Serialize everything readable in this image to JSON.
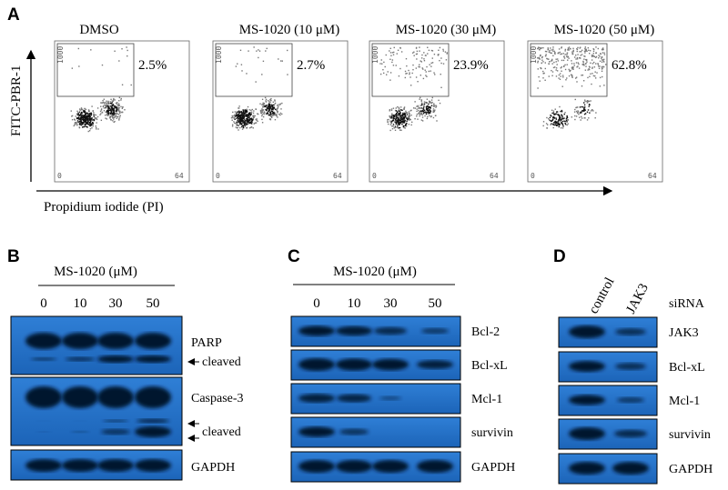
{
  "panel_a": {
    "label": "A",
    "y_label": "FITC-PBR-1",
    "x_label": "Propidium iodide (PI)",
    "plots": [
      {
        "title": "DMSO",
        "percent": "2.5%",
        "y_tick": "1000",
        "x_ticks": [
          "0",
          "64"
        ]
      },
      {
        "title": "MS-1020 (10 μM)",
        "percent": "2.7%",
        "y_tick": "1000",
        "x_ticks": [
          "0",
          "64"
        ]
      },
      {
        "title": "MS-1020 (30 μM)",
        "percent": "23.9%",
        "y_tick": "1000",
        "x_ticks": [
          "0",
          "64"
        ]
      },
      {
        "title": "MS-1020 (50 μM)",
        "percent": "62.8%",
        "y_tick": "1000",
        "x_ticks": [
          "0",
          "64"
        ]
      }
    ]
  },
  "panel_b": {
    "label": "B",
    "treatment": "MS-1020 (μM)",
    "doses": [
      "0",
      "10",
      "30",
      "50"
    ],
    "blots": [
      "PARP",
      "cleaved",
      "Caspase-3",
      "cleaved",
      "GAPDH"
    ]
  },
  "panel_c": {
    "label": "C",
    "treatment": "MS-1020 (μM)",
    "doses": [
      "0",
      "10",
      "30",
      "50"
    ],
    "blots": [
      "Bcl-2",
      "Bcl-xL",
      "Mcl-1",
      "survivin",
      "GAPDH"
    ]
  },
  "panel_d": {
    "label": "D",
    "lanes": [
      "control",
      "JAK3"
    ],
    "condition": "siRNA",
    "blots": [
      "JAK3",
      "Bcl-xL",
      "Mcl-1",
      "survivin",
      "GAPDH"
    ]
  }
}
